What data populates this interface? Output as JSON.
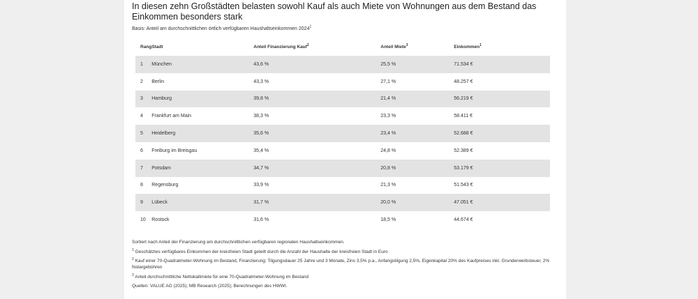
{
  "title": "In diesen zehn Großstädten belasten sowohl Kauf als auch Miete von Wohnungen aus dem Bestand das Einkommen besonders stark",
  "basis": "Basis: Anteil am durchschnittlichen örtlich verfügbaren Haushaltseinkommen 2024",
  "basis_sup": "1",
  "headers": {
    "rank": "Rang",
    "city": "Stadt",
    "purchase": "Anteil Finanzierung Kauf",
    "purchase_sup": "2",
    "rent": "Anteil Miete",
    "rent_sup": "3",
    "income": "Einkommen",
    "income_sup": "1"
  },
  "rows": [
    {
      "rank": "1",
      "city": "München",
      "purchase": "43,6 %",
      "rent": "25,5 %",
      "income": "71.534 €"
    },
    {
      "rank": "2",
      "city": "Berlin",
      "purchase": "43,3 %",
      "rent": "27,1 %",
      "income": "48.257 €"
    },
    {
      "rank": "3",
      "city": "Hamburg",
      "purchase": "39,8 %",
      "rent": "21,4 %",
      "income": "56.219 €"
    },
    {
      "rank": "4",
      "city": "Frankfurt am Main",
      "purchase": "38,3 %",
      "rent": "23,3 %",
      "income": "58.411 €"
    },
    {
      "rank": "5",
      "city": "Heidelberg",
      "purchase": "35,6 %",
      "rent": "23,4 %",
      "income": "52.688 €"
    },
    {
      "rank": "6",
      "city": "Freiburg im Breisgau",
      "purchase": "35,4 %",
      "rent": "24,8 %",
      "income": "52.389 €"
    },
    {
      "rank": "7",
      "city": "Potsdam",
      "purchase": "34,7 %",
      "rent": "20,8 %",
      "income": "53.179 €"
    },
    {
      "rank": "8",
      "city": "Regensburg",
      "purchase": "33,9 %",
      "rent": "21,3 %",
      "income": "51.543 €"
    },
    {
      "rank": "9",
      "city": "Lübeck",
      "purchase": "31,7 %",
      "rent": "20,0 %",
      "income": "47.051 €"
    },
    {
      "rank": "10",
      "city": "Rostock",
      "purchase": "31,6 %",
      "rent": "18,5 %",
      "income": "44.674 €"
    }
  ],
  "notes": {
    "sorted": "Sortiert nach Anteil der Finanzierung am durchschnittlichen verfügbaren regionalen Haushaltseinkommen.",
    "n1_sup": "1",
    "n1": "Geschätztes verfügbares Einkommen der kreisfreien Stadt geteilt durch die Anzahl der Haushalte der kreisfreien Stadt in Euro",
    "n2_sup": "2",
    "n2": "Kauf einer 70-Quadratmeter-Wohnung im Bestand, Finanzierung: Tilgungsdauer 25 Jahre und 3 Monate, Zins 3,5% p.a., Anfangstilgung 2,5%, Eigenkapital 20% des Kaufpreises inkl. Grunderwerbsteuer, 2% Notargebühren",
    "n3_sup": "3",
    "n3": "Anteil durchschnittliche Nettokaltmiete für eine 70-Quadratmeter-Wohnung im Bestand",
    "sources": "Quellen: VALUE AG (2025); MB Research (2025); Berechnungen des HWWI."
  }
}
